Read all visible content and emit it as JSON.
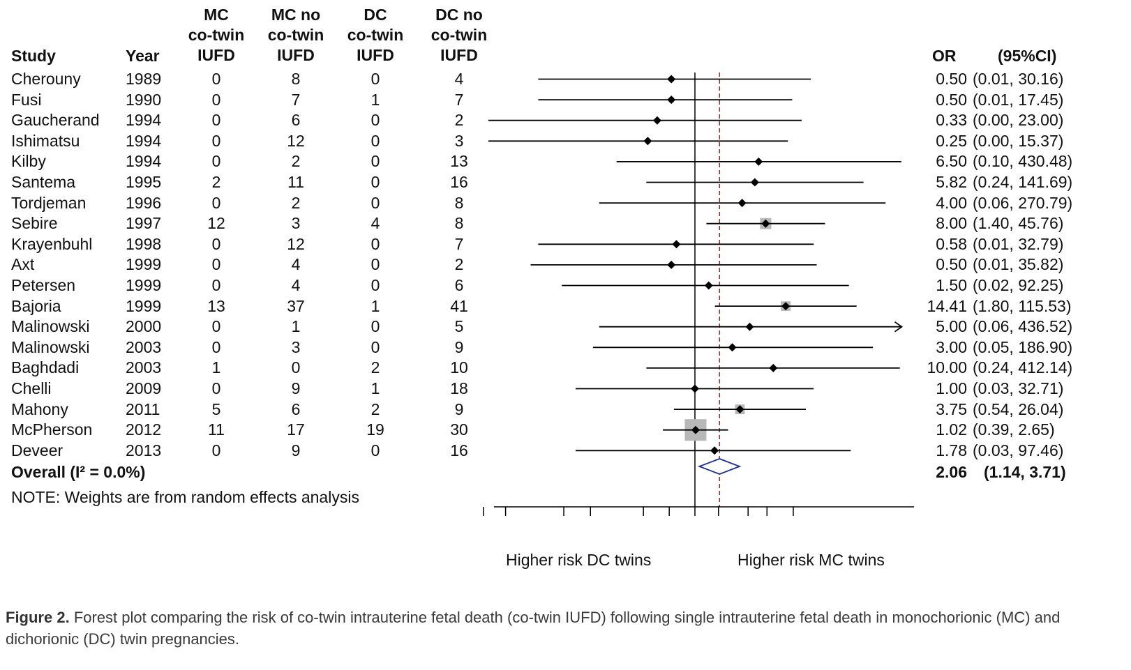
{
  "headers": {
    "study": "Study",
    "year": "Year",
    "mc_iufd": [
      "MC",
      "co-twin",
      "IUFD"
    ],
    "mc_no_iufd": [
      "MC no",
      "co-twin",
      "IUFD"
    ],
    "dc_iufd": [
      "DC",
      "co-twin",
      "IUFD"
    ],
    "dc_no_iufd": [
      "DC no",
      "co-twin",
      "IUFD"
    ],
    "or": "OR",
    "ci": "(95%CI)"
  },
  "rows": [
    {
      "study": "Cherouny",
      "year": "1989",
      "mc": "0",
      "mcno": "8",
      "dc": "0",
      "dcno": "4",
      "or_text": "0.50",
      "ci_text": "(0.01, 30.16)"
    },
    {
      "study": "Fusi",
      "year": "1990",
      "mc": "0",
      "mcno": "7",
      "dc": "1",
      "dcno": "7",
      "or_text": "0.50",
      "ci_text": "(0.01, 17.45)"
    },
    {
      "study": "Gaucherand",
      "year": "1994",
      "mc": "0",
      "mcno": "6",
      "dc": "0",
      "dcno": "2",
      "or_text": "0.33",
      "ci_text": "(0.00, 23.00)"
    },
    {
      "study": "Ishimatsu",
      "year": "1994",
      "mc": "0",
      "mcno": "12",
      "dc": "0",
      "dcno": "3",
      "or_text": "0.25",
      "ci_text": "(0.00, 15.37)"
    },
    {
      "study": "Kilby",
      "year": "1994",
      "mc": "0",
      "mcno": "2",
      "dc": "0",
      "dcno": "13",
      "or_text": "6.50",
      "ci_text": "(0.10, 430.48)"
    },
    {
      "study": "Santema",
      "year": "1995",
      "mc": "2",
      "mcno": "11",
      "dc": "0",
      "dcno": "16",
      "or_text": "5.82",
      "ci_text": "(0.24, 141.69)"
    },
    {
      "study": "Tordjeman",
      "year": "1996",
      "mc": "0",
      "mcno": "2",
      "dc": "0",
      "dcno": "8",
      "or_text": "4.00",
      "ci_text": "(0.06, 270.79)"
    },
    {
      "study": "Sebire",
      "year": "1997",
      "mc": "12",
      "mcno": "3",
      "dc": "4",
      "dcno": "8",
      "or_text": "8.00",
      "ci_text": "(1.40, 45.76)"
    },
    {
      "study": "Krayenbuhl",
      "year": "1998",
      "mc": "0",
      "mcno": "12",
      "dc": "0",
      "dcno": "7",
      "or_text": "0.58",
      "ci_text": "(0.01, 32.79)"
    },
    {
      "study": "Axt",
      "year": "1999",
      "mc": "0",
      "mcno": "4",
      "dc": "0",
      "dcno": "2",
      "or_text": "0.50",
      "ci_text": "(0.01, 35.82)"
    },
    {
      "study": "Petersen",
      "year": "1999",
      "mc": "0",
      "mcno": "4",
      "dc": "0",
      "dcno": "6",
      "or_text": "1.50",
      "ci_text": "(0.02, 92.25)"
    },
    {
      "study": "Bajoria",
      "year": "1999",
      "mc": "13",
      "mcno": "37",
      "dc": "1",
      "dcno": "41",
      "or_text": "14.41",
      "ci_text": "(1.80, 115.53)"
    },
    {
      "study": "Malinowski",
      "year": "2000",
      "mc": "0",
      "mcno": "1",
      "dc": "0",
      "dcno": "5",
      "or_text": "5.00",
      "ci_text": "(0.06, 436.52)"
    },
    {
      "study": "Malinowski",
      "year": "2003",
      "mc": "0",
      "mcno": "3",
      "dc": "0",
      "dcno": "9",
      "or_text": "3.00",
      "ci_text": "(0.05, 186.90)"
    },
    {
      "study": "Baghdadi",
      "year": "2003",
      "mc": "1",
      "mcno": "0",
      "dc": "2",
      "dcno": "10",
      "or_text": "10.00",
      "ci_text": "(0.24, 412.14)"
    },
    {
      "study": "Chelli",
      "year": "2009",
      "mc": "0",
      "mcno": "9",
      "dc": "1",
      "dcno": "18",
      "or_text": "1.00",
      "ci_text": "(0.03, 32.71)"
    },
    {
      "study": "Mahony",
      "year": "2011",
      "mc": "5",
      "mcno": "6",
      "dc": "2",
      "dcno": "9",
      "or_text": "3.75",
      "ci_text": "(0.54, 26.04)"
    },
    {
      "study": "McPherson",
      "year": "2012",
      "mc": "11",
      "mcno": "17",
      "dc": "19",
      "dcno": "30",
      "or_text": "1.02",
      "ci_text": "(0.39, 2.65)"
    },
    {
      "study": "Deveer",
      "year": "2013",
      "mc": "0",
      "mcno": "9",
      "dc": "0",
      "dcno": "16",
      "or_text": "1.78",
      "ci_text": "(0.03, 97.46)"
    }
  ],
  "overall": {
    "label": "Overall (I² = 0.0%)",
    "or_text": "2.06",
    "ci_text": "(1.14, 3.71)"
  },
  "note": "NOTE: Weights are from random effects analysis",
  "axis_labels": {
    "left": "Higher risk DC twins",
    "right": "Higher risk MC twins"
  },
  "caption": {
    "label": "Figure 2.",
    "text": "Forest plot comparing the risk of co-twin intrauterine fetal death (co-twin IUFD) following single intrauterine fetal death in monochorionic (MC) and dichorionic (DC) twin pregnancies."
  },
  "chart_data": {
    "type": "forest",
    "scale": "log",
    "null_value": 1,
    "pooled_value": 2.06,
    "xlim": [
      0.0023,
      436.52
    ],
    "ticks": [
      0.002,
      0.00383,
      0.0212,
      0.0464,
      0.22,
      0.47,
      1.0,
      2.0,
      4.77,
      8.31,
      18.0
    ],
    "studies": [
      {
        "or": 0.5,
        "lo": 0.01,
        "hi": 30.16,
        "weight": 0.8
      },
      {
        "or": 0.5,
        "lo": 0.01,
        "hi": 17.45,
        "weight": 0.8
      },
      {
        "or": 0.33,
        "lo": 0.0023,
        "hi": 23.0,
        "weight": 0.5
      },
      {
        "or": 0.25,
        "lo": 0.0021,
        "hi": 15.37,
        "weight": 0.5
      },
      {
        "or": 6.5,
        "lo": 0.1,
        "hi": 430.48,
        "weight": 0.5
      },
      {
        "or": 5.82,
        "lo": 0.24,
        "hi": 141.69,
        "weight": 0.8
      },
      {
        "or": 4.0,
        "lo": 0.06,
        "hi": 270.79,
        "weight": 0.5
      },
      {
        "or": 8.0,
        "lo": 1.4,
        "hi": 45.76,
        "weight": 4.0
      },
      {
        "or": 0.58,
        "lo": 0.01,
        "hi": 32.79,
        "weight": 0.5
      },
      {
        "or": 0.5,
        "lo": 0.008,
        "hi": 35.82,
        "weight": 0.5
      },
      {
        "or": 1.5,
        "lo": 0.02,
        "hi": 92.25,
        "weight": 0.5
      },
      {
        "or": 14.41,
        "lo": 1.8,
        "hi": 115.53,
        "weight": 3.0
      },
      {
        "or": 5.0,
        "lo": 0.06,
        "hi": 436.52,
        "weight": 0.5,
        "arrow": true
      },
      {
        "or": 3.0,
        "lo": 0.05,
        "hi": 186.9,
        "weight": 0.5
      },
      {
        "or": 10.0,
        "lo": 0.24,
        "hi": 412.14,
        "weight": 0.5
      },
      {
        "or": 1.0,
        "lo": 0.03,
        "hi": 32.71,
        "weight": 0.5
      },
      {
        "or": 3.75,
        "lo": 0.54,
        "hi": 26.04,
        "weight": 3.0
      },
      {
        "or": 1.02,
        "lo": 0.39,
        "hi": 2.65,
        "weight": 15.0
      },
      {
        "or": 1.78,
        "lo": 0.03,
        "hi": 97.46,
        "weight": 0.5
      }
    ],
    "overall": {
      "or": 2.06,
      "lo": 1.14,
      "hi": 3.71
    }
  }
}
